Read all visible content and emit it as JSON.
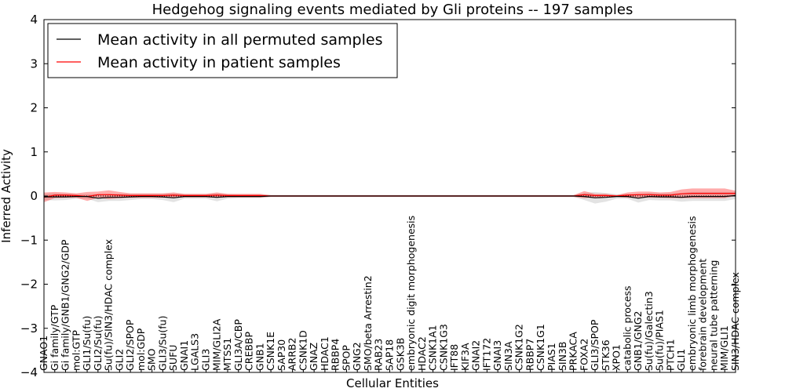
{
  "chart_data": {
    "type": "line",
    "title": "Hedgehog signaling events mediated by Gli proteins -- 197 samples",
    "xlabel": "Cellular Entities",
    "ylabel": "Inferred Activity",
    "ylim": [
      -4,
      4
    ],
    "yticks": [
      "4",
      "3",
      "2",
      "1",
      "0",
      "−1",
      "−2",
      "−3",
      "−4"
    ],
    "legend": {
      "placement": "top-left",
      "entries": [
        {
          "label": "Mean activity in all permuted samples",
          "color": "#000000"
        },
        {
          "label": "Mean activity in patient samples",
          "color": "#ff0000"
        }
      ]
    },
    "categories": [
      "GNAO1",
      "Gi family/GTP",
      "Gi family/GNB1/GNG2/GDP",
      "mol:GTP",
      "GLI1/Su(fu)",
      "GLI2/Su(fu)",
      "Su(fu)/SIN3/HDAC complex",
      "GLI2",
      "GLI2/SPOP",
      "mol:GDP",
      "SMO",
      "GLI3/Su(fu)",
      "SUFU",
      "GNAI1",
      "LGALS3",
      "GLI3",
      "MIM/GLI2A",
      "MTSS1",
      "GLI3A/CBP",
      "CREBBP",
      "GNB1",
      "CSNK1E",
      "SAP30",
      "ARRB2",
      "CSNK1D",
      "GNAZ",
      "HDAC1",
      "RBBP4",
      "SPOP",
      "GNG2",
      "SMO/beta Arrestin2",
      "RAB23",
      "SAP18",
      "GSK3B",
      "embryonic digit morphogenesis",
      "HDAC2",
      "CSNK1A1",
      "CSNK1G3",
      "IFT88",
      "KIF3A",
      "GNAI2",
      "IFT172",
      "GNAI3",
      "SIN3A",
      "CSNK1G2",
      "RBBP7",
      "CSNK1G1",
      "PIAS1",
      "SIN3B",
      "PRKACA",
      "FOXA2",
      "GLI3/SPOP",
      "STK36",
      "XPO1",
      "catabolic process",
      "GNB1/GNG2",
      "Su(fu)/Galectin3",
      "Su(fu)/PIAS1",
      "PTCH1",
      "GLI1",
      "embryonic limb morphogenesis",
      "forebrain development",
      "neural tube patterning",
      "MIM/GLI1",
      "SIN3/HDAC complex"
    ],
    "series": [
      {
        "name": "Mean activity in all permuted samples",
        "color": "#000000",
        "values": [
          -0.02,
          -0.02,
          -0.02,
          -0.01,
          -0.01,
          -0.05,
          -0.03,
          -0.03,
          -0.02,
          -0.01,
          -0.01,
          -0.02,
          -0.04,
          -0.01,
          -0.01,
          -0.01,
          -0.03,
          -0.01,
          -0.01,
          -0.01,
          -0.01,
          0,
          0,
          0,
          0,
          0,
          0,
          0,
          0,
          0,
          0,
          0,
          0,
          0,
          0,
          0,
          0,
          0,
          0,
          0,
          0,
          0,
          0,
          0,
          0,
          0,
          0,
          0,
          0,
          0,
          -0.01,
          -0.04,
          -0.03,
          -0.01,
          -0.01,
          -0.05,
          -0.01,
          -0.02,
          -0.02,
          -0.03,
          -0.01,
          -0.01,
          -0.01,
          -0.01,
          0.01
        ],
        "band": [
          0.07,
          0.08,
          0.07,
          0.05,
          0.05,
          0.09,
          0.08,
          0.08,
          0.07,
          0.06,
          0.06,
          0.07,
          0.1,
          0.05,
          0.05,
          0.05,
          0.09,
          0.05,
          0.04,
          0.04,
          0.04,
          0.02,
          0.02,
          0.02,
          0.02,
          0.02,
          0.02,
          0.02,
          0.02,
          0.02,
          0.02,
          0.02,
          0.02,
          0.02,
          0.02,
          0.02,
          0.02,
          0.02,
          0.02,
          0.02,
          0.02,
          0.02,
          0.02,
          0.02,
          0.02,
          0.02,
          0.02,
          0.02,
          0.02,
          0.02,
          0.08,
          0.13,
          0.1,
          0.05,
          0.05,
          0.1,
          0.08,
          0.08,
          0.08,
          0.1,
          0.1,
          0.1,
          0.1,
          0.1,
          0.08
        ]
      },
      {
        "name": "Mean activity in patient samples",
        "color": "#ff0000",
        "values": [
          -0.03,
          0.02,
          0.02,
          0.01,
          -0.01,
          0.03,
          0.03,
          0.02,
          0.01,
          0.01,
          0.01,
          0.01,
          0.02,
          0.01,
          0.01,
          0.01,
          0.02,
          0.01,
          0.01,
          0.01,
          0.01,
          0,
          0,
          0,
          0,
          0,
          0,
          0,
          0,
          0,
          0,
          0,
          0,
          0,
          0,
          0,
          0,
          0,
          0,
          0,
          0,
          0,
          0,
          0,
          0,
          0,
          0,
          0,
          0,
          0,
          0.03,
          0.01,
          0.01,
          0,
          0.02,
          0.03,
          0.03,
          0.02,
          0.02,
          0.05,
          0.06,
          0.06,
          0.06,
          0.06,
          0.06
        ],
        "band": [
          0.11,
          0.07,
          0.06,
          0.05,
          0.1,
          0.07,
          0.1,
          0.07,
          0.05,
          0.05,
          0.05,
          0.05,
          0.06,
          0.04,
          0.04,
          0.04,
          0.06,
          0.04,
          0.04,
          0.04,
          0.04,
          0.02,
          0.02,
          0.02,
          0.02,
          0.02,
          0.02,
          0.02,
          0.02,
          0.02,
          0.02,
          0.02,
          0.02,
          0.02,
          0.02,
          0.02,
          0.02,
          0.02,
          0.02,
          0.02,
          0.02,
          0.02,
          0.02,
          0.02,
          0.02,
          0.02,
          0.02,
          0.02,
          0.02,
          0.02,
          0.08,
          0.04,
          0.04,
          0.02,
          0.06,
          0.07,
          0.07,
          0.06,
          0.07,
          0.1,
          0.11,
          0.11,
          0.11,
          0.11,
          0.06
        ]
      }
    ]
  }
}
